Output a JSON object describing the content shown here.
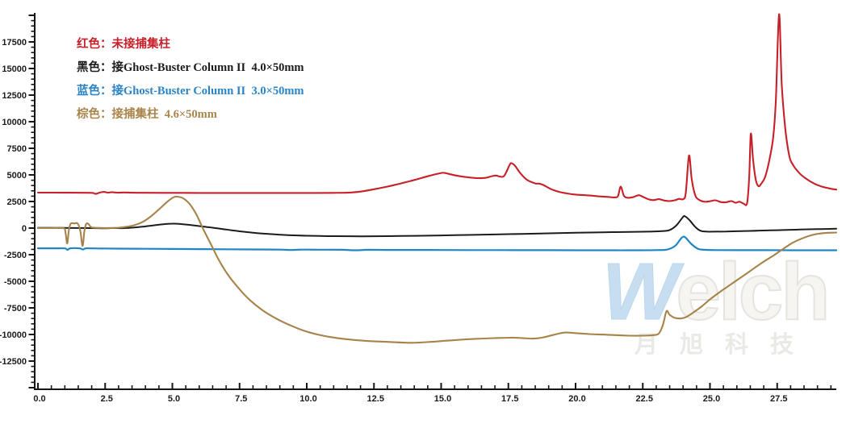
{
  "legend": {
    "items": [
      {
        "text": "红色：未接捕集柱",
        "color": "#c82029"
      },
      {
        "text": "黑色：接Ghost-Buster Column II  4.0×50mm",
        "color": "#1b1b1b"
      },
      {
        "text": "蓝色：接Ghost-Buster Column II  3.0×50mm",
        "color": "#2b84c5"
      },
      {
        "text": "棕色：接捕集柱  4.6×50mm",
        "color": "#a9854c"
      }
    ]
  },
  "watermark": {
    "brand_first_letter": "W",
    "brand_rest": "elch",
    "subtext": "月旭科技"
  },
  "chart_data": {
    "type": "line",
    "title": "",
    "xlabel": "",
    "ylabel": "",
    "x_axis": {
      "range": [
        0,
        29.7
      ],
      "major_tick_step": 2.5,
      "minor_tick_step": 0.5,
      "tick_labels": [
        "0.0",
        "2.5",
        "5.0",
        "7.5",
        "10.0",
        "12.5",
        "15.0",
        "17.5",
        "20.0",
        "22.5",
        "25.0",
        "27.5"
      ],
      "tick_values": [
        0,
        2.5,
        5,
        7.5,
        10,
        12.5,
        15,
        17.5,
        20,
        22.5,
        25,
        27.5
      ]
    },
    "y_axis": {
      "range": [
        -15150,
        20150
      ],
      "major_tick_step": 2500,
      "minor_tick_step": 500,
      "tick_labels": [
        "17500",
        "15000",
        "12500",
        "10000",
        "7500",
        "5000",
        "2500",
        "0",
        "-2500",
        "-5000",
        "-7500",
        "-10000",
        "-12500"
      ],
      "tick_values": [
        17500,
        15000,
        12500,
        10000,
        7500,
        5000,
        2500,
        0,
        -2500,
        -5000,
        -7500,
        -10000,
        -12500
      ]
    },
    "grid": false,
    "legend_position": "top-left",
    "axis_color": "#161616",
    "series": [
      {
        "name": "未接捕集柱",
        "color": "#c82029",
        "width": 2.1,
        "points": [
          [
            0,
            3330
          ],
          [
            0.6,
            3330
          ],
          [
            1.2,
            3325
          ],
          [
            1.8,
            3320
          ],
          [
            2.05,
            3300
          ],
          [
            2.15,
            3210
          ],
          [
            2.3,
            3340
          ],
          [
            2.45,
            3400
          ],
          [
            2.6,
            3330
          ],
          [
            2.75,
            3380
          ],
          [
            2.95,
            3330
          ],
          [
            3.2,
            3350
          ],
          [
            3.5,
            3325
          ],
          [
            4,
            3315
          ],
          [
            5,
            3310
          ],
          [
            6,
            3305
          ],
          [
            7,
            3300
          ],
          [
            8,
            3300
          ],
          [
            9,
            3300
          ],
          [
            10,
            3300
          ],
          [
            11,
            3310
          ],
          [
            11.6,
            3340
          ],
          [
            12,
            3430
          ],
          [
            12.5,
            3650
          ],
          [
            13,
            3900
          ],
          [
            13.5,
            4200
          ],
          [
            14,
            4520
          ],
          [
            14.5,
            4870
          ],
          [
            14.9,
            5120
          ],
          [
            15.1,
            5200
          ],
          [
            15.35,
            5050
          ],
          [
            15.7,
            4870
          ],
          [
            16,
            4770
          ],
          [
            16.35,
            4700
          ],
          [
            16.65,
            4720
          ],
          [
            16.9,
            4890
          ],
          [
            17.05,
            4940
          ],
          [
            17.2,
            4830
          ],
          [
            17.35,
            4930
          ],
          [
            17.55,
            5950
          ],
          [
            17.62,
            6100
          ],
          [
            17.75,
            5850
          ],
          [
            17.95,
            5150
          ],
          [
            18.2,
            4520
          ],
          [
            18.5,
            4200
          ],
          [
            18.65,
            4180
          ],
          [
            18.8,
            4050
          ],
          [
            19.1,
            3650
          ],
          [
            19.4,
            3400
          ],
          [
            19.7,
            3250
          ],
          [
            20,
            3150
          ],
          [
            20.3,
            3100
          ],
          [
            20.6,
            3050
          ],
          [
            20.9,
            2980
          ],
          [
            21.2,
            2930
          ],
          [
            21.45,
            2890
          ],
          [
            21.58,
            3020
          ],
          [
            21.68,
            3900
          ],
          [
            21.8,
            3030
          ],
          [
            21.95,
            2850
          ],
          [
            22.15,
            2920
          ],
          [
            22.35,
            3090
          ],
          [
            22.5,
            2950
          ],
          [
            22.7,
            2720
          ],
          [
            22.9,
            2630
          ],
          [
            23.1,
            2720
          ],
          [
            23.3,
            2590
          ],
          [
            23.5,
            2540
          ],
          [
            23.7,
            2620
          ],
          [
            23.85,
            2750
          ],
          [
            24,
            2720
          ],
          [
            24.1,
            3300
          ],
          [
            24.22,
            6820
          ],
          [
            24.32,
            4600
          ],
          [
            24.45,
            3100
          ],
          [
            24.6,
            2650
          ],
          [
            24.8,
            2480
          ],
          [
            25,
            2520
          ],
          [
            25.2,
            2610
          ],
          [
            25.4,
            2450
          ],
          [
            25.6,
            2430
          ],
          [
            25.8,
            2540
          ],
          [
            25.95,
            2380
          ],
          [
            26.1,
            2480
          ],
          [
            26.25,
            2300
          ],
          [
            26.38,
            2350
          ],
          [
            26.46,
            4800
          ],
          [
            26.52,
            8870
          ],
          [
            26.6,
            6500
          ],
          [
            26.7,
            4600
          ],
          [
            26.8,
            3950
          ],
          [
            26.9,
            4150
          ],
          [
            27.05,
            4800
          ],
          [
            27.2,
            6300
          ],
          [
            27.35,
            8500
          ],
          [
            27.45,
            12000
          ],
          [
            27.57,
            20100
          ],
          [
            27.67,
            13500
          ],
          [
            27.8,
            9400
          ],
          [
            27.95,
            6800
          ],
          [
            28.1,
            5900
          ],
          [
            28.35,
            5100
          ],
          [
            28.6,
            4600
          ],
          [
            28.9,
            4150
          ],
          [
            29.2,
            3870
          ],
          [
            29.5,
            3700
          ],
          [
            29.7,
            3620
          ]
        ]
      },
      {
        "name": "接Ghost-Buster Column II 4.0×50mm",
        "color": "#1c1c1c",
        "width": 2,
        "points": [
          [
            0,
            30
          ],
          [
            0.7,
            20
          ],
          [
            1.4,
            10
          ],
          [
            2,
            0
          ],
          [
            2.5,
            -20
          ],
          [
            2.8,
            10
          ],
          [
            3.1,
            -10
          ],
          [
            3.4,
            20
          ],
          [
            3.7,
            80
          ],
          [
            4,
            160
          ],
          [
            4.3,
            260
          ],
          [
            4.7,
            370
          ],
          [
            5,
            420
          ],
          [
            5.25,
            400
          ],
          [
            5.6,
            310
          ],
          [
            6,
            190
          ],
          [
            6.5,
            40
          ],
          [
            7,
            -140
          ],
          [
            7.5,
            -300
          ],
          [
            8,
            -430
          ],
          [
            8.5,
            -540
          ],
          [
            9,
            -620
          ],
          [
            9.5,
            -680
          ],
          [
            10,
            -720
          ],
          [
            10.5,
            -745
          ],
          [
            11,
            -760
          ],
          [
            12,
            -770
          ],
          [
            13,
            -755
          ],
          [
            14,
            -725
          ],
          [
            15,
            -690
          ],
          [
            16,
            -645
          ],
          [
            17,
            -595
          ],
          [
            18,
            -545
          ],
          [
            19,
            -490
          ],
          [
            20,
            -440
          ],
          [
            21,
            -395
          ],
          [
            22,
            -360
          ],
          [
            22.7,
            -330
          ],
          [
            23.2,
            -290
          ],
          [
            23.5,
            -180
          ],
          [
            23.75,
            260
          ],
          [
            24,
            1050
          ],
          [
            24.08,
            1090
          ],
          [
            24.25,
            720
          ],
          [
            24.45,
            110
          ],
          [
            24.65,
            -250
          ],
          [
            24.9,
            -330
          ],
          [
            25.2,
            -330
          ],
          [
            25.6,
            -315
          ],
          [
            26,
            -295
          ],
          [
            26.5,
            -265
          ],
          [
            27,
            -230
          ],
          [
            27.5,
            -195
          ],
          [
            28,
            -160
          ],
          [
            28.5,
            -125
          ],
          [
            29,
            -95
          ],
          [
            29.7,
            -60
          ]
        ]
      },
      {
        "name": "接Ghost-Buster Column II 3.0×50mm",
        "color": "#1f86c6",
        "width": 2.2,
        "points": [
          [
            0,
            -1900
          ],
          [
            0.6,
            -1905
          ],
          [
            1,
            -1910
          ],
          [
            1.1,
            -2040
          ],
          [
            1.2,
            -1905
          ],
          [
            1.55,
            -1905
          ],
          [
            1.67,
            -2010
          ],
          [
            1.8,
            -1905
          ],
          [
            2.3,
            -1915
          ],
          [
            3,
            -1930
          ],
          [
            4,
            -1945
          ],
          [
            5,
            -1960
          ],
          [
            6,
            -1975
          ],
          [
            7,
            -1990
          ],
          [
            8,
            -2005
          ],
          [
            9,
            -2020
          ],
          [
            9.4,
            -2060
          ],
          [
            9.8,
            -2020
          ],
          [
            10.5,
            -2030
          ],
          [
            11.3,
            -2040
          ],
          [
            11.8,
            -2080
          ],
          [
            12.3,
            -2040
          ],
          [
            13,
            -2050
          ],
          [
            14,
            -2055
          ],
          [
            15,
            -2060
          ],
          [
            16,
            -2065
          ],
          [
            17,
            -2070
          ],
          [
            18,
            -2072
          ],
          [
            19,
            -2076
          ],
          [
            20,
            -2080
          ],
          [
            21,
            -2085
          ],
          [
            22,
            -2085
          ],
          [
            23,
            -2070
          ],
          [
            23.4,
            -2020
          ],
          [
            23.7,
            -1680
          ],
          [
            23.95,
            -900
          ],
          [
            24.08,
            -870
          ],
          [
            24.3,
            -1480
          ],
          [
            24.55,
            -1940
          ],
          [
            24.8,
            -2040
          ],
          [
            25.2,
            -2070
          ],
          [
            26,
            -2075
          ],
          [
            27,
            -2078
          ],
          [
            28,
            -2080
          ],
          [
            29,
            -2080
          ],
          [
            29.7,
            -2080
          ]
        ]
      },
      {
        "name": "接捕集柱 4.6×50mm",
        "color": "#a7834a",
        "width": 2.1,
        "points": [
          [
            0,
            10
          ],
          [
            0.5,
            10
          ],
          [
            0.95,
            10
          ],
          [
            1.03,
            -500
          ],
          [
            1.09,
            -1450
          ],
          [
            1.15,
            -200
          ],
          [
            1.22,
            420
          ],
          [
            1.35,
            440
          ],
          [
            1.48,
            420
          ],
          [
            1.58,
            -300
          ],
          [
            1.66,
            -1680
          ],
          [
            1.73,
            -250
          ],
          [
            1.8,
            400
          ],
          [
            1.88,
            380
          ],
          [
            1.97,
            100
          ],
          [
            2.1,
            30
          ],
          [
            2.6,
            10
          ],
          [
            3,
            40
          ],
          [
            3.3,
            130
          ],
          [
            3.6,
            280
          ],
          [
            3.9,
            580
          ],
          [
            4.2,
            1100
          ],
          [
            4.5,
            1750
          ],
          [
            4.8,
            2450
          ],
          [
            5.05,
            2900
          ],
          [
            5.2,
            2950
          ],
          [
            5.4,
            2800
          ],
          [
            5.65,
            2250
          ],
          [
            5.9,
            1250
          ],
          [
            6.15,
            -100
          ],
          [
            6.45,
            -1600
          ],
          [
            6.75,
            -3100
          ],
          [
            7.1,
            -4500
          ],
          [
            7.5,
            -5750
          ],
          [
            7.9,
            -6800
          ],
          [
            8.4,
            -7800
          ],
          [
            8.9,
            -8550
          ],
          [
            9.4,
            -9150
          ],
          [
            9.9,
            -9650
          ],
          [
            10.4,
            -10000
          ],
          [
            10.9,
            -10250
          ],
          [
            11.5,
            -10450
          ],
          [
            12.2,
            -10600
          ],
          [
            13,
            -10700
          ],
          [
            13.9,
            -10780
          ],
          [
            14.6,
            -10700
          ],
          [
            15.2,
            -10580
          ],
          [
            15.8,
            -10480
          ],
          [
            16.4,
            -10400
          ],
          [
            17,
            -10340
          ],
          [
            17.6,
            -10300
          ],
          [
            18,
            -10330
          ],
          [
            18.4,
            -10390
          ],
          [
            18.8,
            -10270
          ],
          [
            19.2,
            -10020
          ],
          [
            19.6,
            -9820
          ],
          [
            20,
            -9870
          ],
          [
            20.5,
            -9960
          ],
          [
            21,
            -10010
          ],
          [
            21.5,
            -10060
          ],
          [
            22,
            -10110
          ],
          [
            22.5,
            -10110
          ],
          [
            22.9,
            -10060
          ],
          [
            23.1,
            -9900
          ],
          [
            23.25,
            -9100
          ],
          [
            23.38,
            -7820
          ],
          [
            23.5,
            -8150
          ],
          [
            23.68,
            -8430
          ],
          [
            23.9,
            -8500
          ],
          [
            24.1,
            -8380
          ],
          [
            24.4,
            -7900
          ],
          [
            24.7,
            -7350
          ],
          [
            25,
            -6700
          ],
          [
            25.4,
            -5950
          ],
          [
            25.8,
            -5250
          ],
          [
            26.2,
            -4550
          ],
          [
            26.6,
            -3850
          ],
          [
            27,
            -3150
          ],
          [
            27.35,
            -2600
          ],
          [
            27.7,
            -2000
          ],
          [
            28.05,
            -1420
          ],
          [
            28.4,
            -1000
          ],
          [
            28.8,
            -650
          ],
          [
            29.2,
            -480
          ],
          [
            29.7,
            -420
          ]
        ]
      }
    ]
  }
}
